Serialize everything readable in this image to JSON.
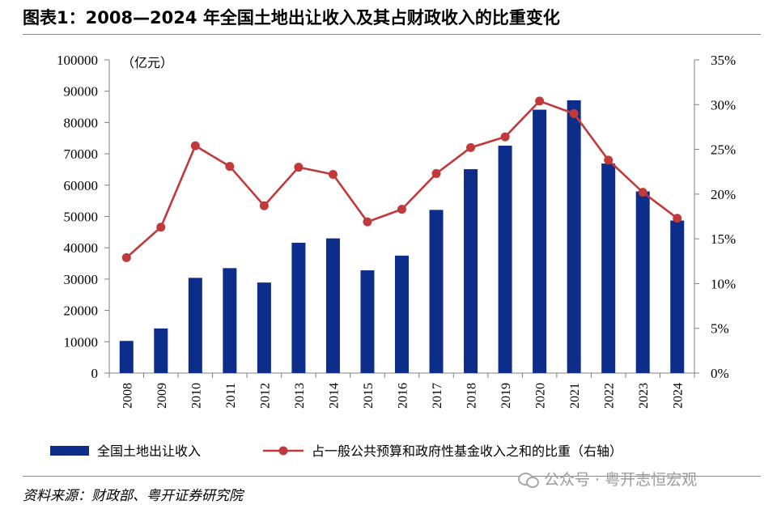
{
  "title": "图表1：2008—2024 年全国土地出让收入及其占财政收入的比重变化",
  "source": "资料来源：财政部、粤开证券研究院",
  "watermark": "公众号 · 粤开志恒宏观",
  "chart_data": {
    "type": "bar+line",
    "unit_label": "（亿元）",
    "categories": [
      "2008",
      "2009",
      "2010",
      "2011",
      "2012",
      "2013",
      "2014",
      "2015",
      "2016",
      "2017",
      "2018",
      "2019",
      "2020",
      "2021",
      "2022",
      "2023",
      "2024"
    ],
    "series": [
      {
        "name": "全国土地出让收入",
        "type": "bar",
        "axis": "left",
        "color": "#0d2d8a",
        "values": [
          10260,
          14240,
          30400,
          33500,
          28900,
          41600,
          43000,
          32800,
          37500,
          52100,
          65100,
          72600,
          84100,
          87100,
          66900,
          58000,
          48700
        ]
      },
      {
        "name": "占一般公共预算和政府性基金收入之和的比重（右轴）",
        "type": "line",
        "axis": "right",
        "color": "#c0393b",
        "values": [
          12.9,
          16.3,
          25.4,
          23.1,
          18.7,
          23.0,
          22.2,
          16.9,
          18.3,
          22.3,
          25.2,
          26.4,
          30.4,
          29.0,
          23.8,
          20.2,
          17.3
        ]
      }
    ],
    "y_left": {
      "min": 0,
      "max": 100000,
      "ticks": [
        "0",
        "10000",
        "20000",
        "30000",
        "40000",
        "50000",
        "60000",
        "70000",
        "80000",
        "90000",
        "100000"
      ]
    },
    "y_right": {
      "min": 0,
      "max": 35,
      "ticks": [
        "0%",
        "5%",
        "10%",
        "15%",
        "20%",
        "25%",
        "30%",
        "35%"
      ]
    },
    "legend_position": "bottom",
    "grid": false
  }
}
